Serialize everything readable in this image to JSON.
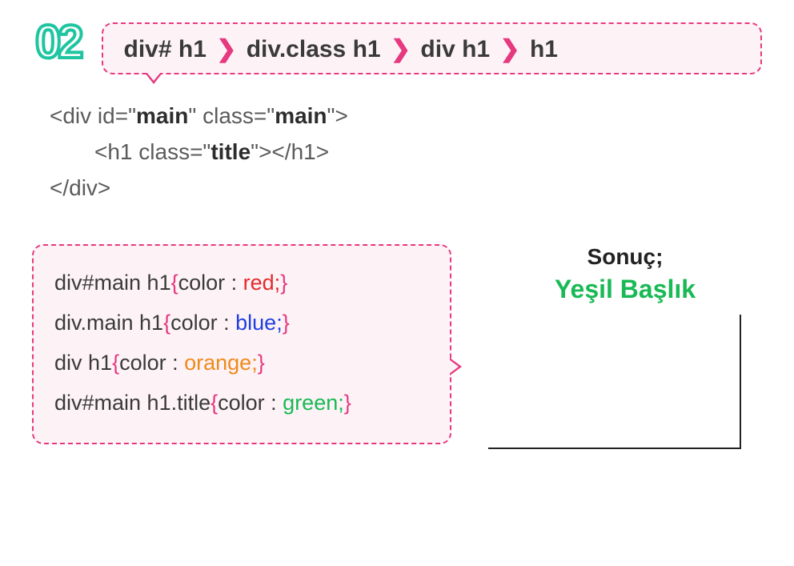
{
  "step_number": "02",
  "rule": {
    "seg1": "div# h1",
    "seg2": "div.class h1",
    "seg3": "div h1",
    "seg4": "h1"
  },
  "html_sample": {
    "line1_open": "<div id=\"",
    "line1_id": "main",
    "line1_mid": "\" class=\"",
    "line1_class": "main",
    "line1_close": "\">",
    "line2_open": "<h1 class=\"",
    "line2_class": "title",
    "line2_close": "\"></h1>",
    "line3": "</div>"
  },
  "css_rules": [
    {
      "selector": "div#main h1",
      "prop": "color : ",
      "value": "red;",
      "color_hex": "#e22b2b"
    },
    {
      "selector": "div.main h1",
      "prop": "color : ",
      "value": "blue;",
      "color_hex": "#1f3fe0"
    },
    {
      "selector": "div h1",
      "prop": "color : ",
      "value": "orange;",
      "color_hex": "#f08a1c"
    },
    {
      "selector": "div#main h1.title",
      "prop": "color : ",
      "value": "green;",
      "color_hex": "#19b955"
    }
  ],
  "result": {
    "label": "Sonuç;",
    "value": "Yeşil Başlık",
    "value_color": "#19b955"
  },
  "colors": {
    "dashed_border": "#e6397f",
    "box_bg": "#fdf3f7",
    "step_stroke": "#1fc5a0",
    "text": "#3a3a3a"
  }
}
